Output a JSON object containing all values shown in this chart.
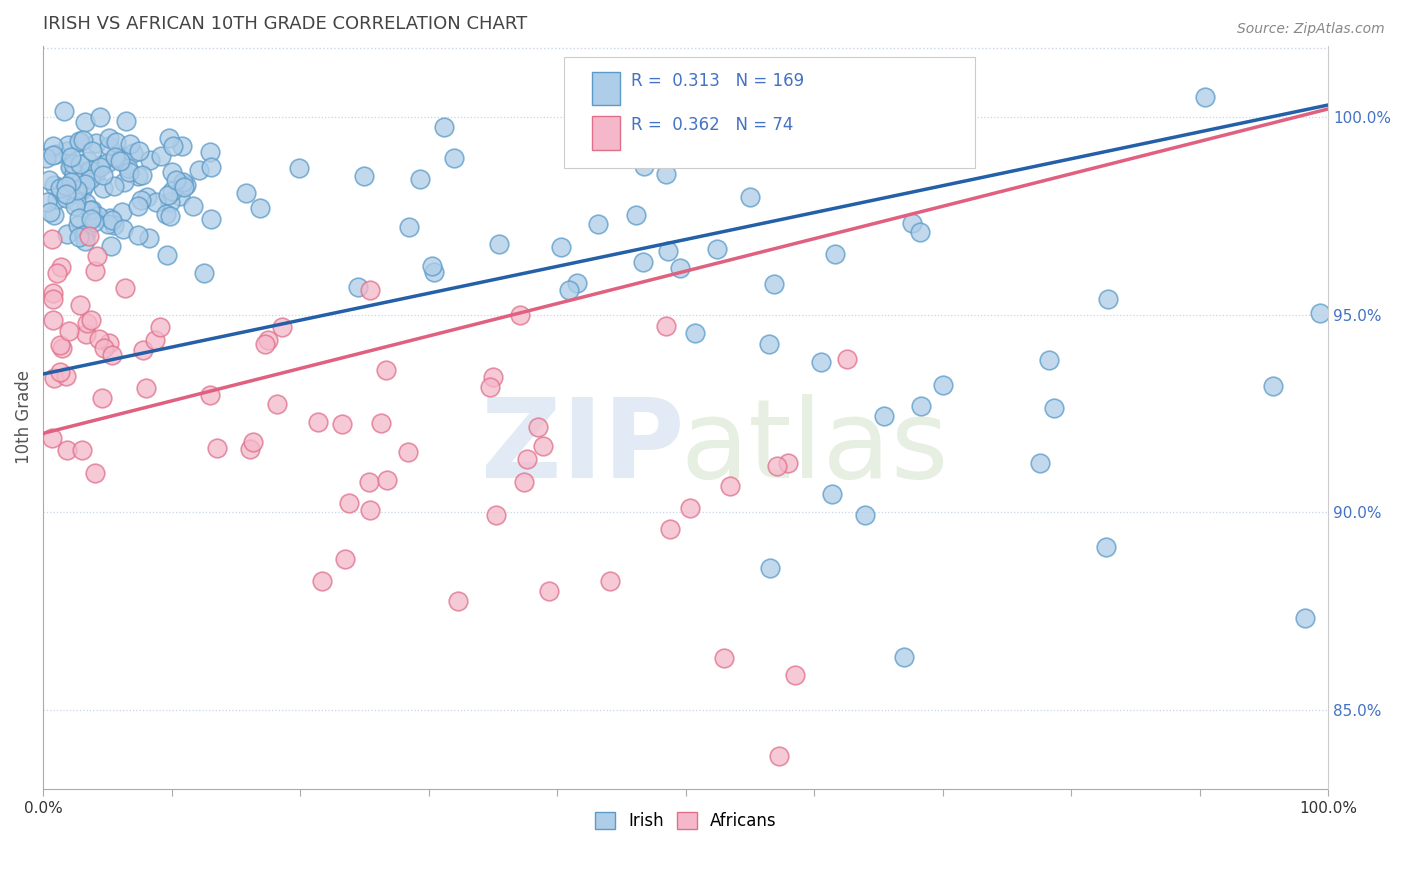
{
  "title": "IRISH VS AFRICAN 10TH GRADE CORRELATION CHART",
  "source": "Source: ZipAtlas.com",
  "ylabel": "10th Grade",
  "xlim": [
    0.0,
    100.0
  ],
  "ylim": [
    83.0,
    101.8
  ],
  "yticks": [
    85.0,
    90.0,
    95.0,
    100.0
  ],
  "ytick_labels": [
    "85.0%",
    "90.0%",
    "95.0%",
    "100.0%"
  ],
  "blue_color": "#aecde8",
  "blue_edge": "#5b9bc8",
  "pink_color": "#f4b8ca",
  "pink_edge": "#e0708a",
  "blue_line_color": "#2460a7",
  "pink_line_color": "#e06080",
  "R_blue": 0.313,
  "N_blue": 169,
  "R_pink": 0.362,
  "N_pink": 74,
  "legend_irish": "Irish",
  "legend_africans": "Africans",
  "blue_trend_x0": 0,
  "blue_trend_y0": 93.5,
  "blue_trend_x1": 100,
  "blue_trend_y1": 100.3,
  "pink_trend_x0": 0,
  "pink_trend_y0": 92.0,
  "pink_trend_x1": 100,
  "pink_trend_y1": 100.2,
  "watermark_zip": "ZIP",
  "watermark_atlas": "atlas",
  "background_color": "#ffffff",
  "grid_color": "#c8d4e8",
  "title_color": "#444444",
  "tick_label_color": "#4472c4"
}
